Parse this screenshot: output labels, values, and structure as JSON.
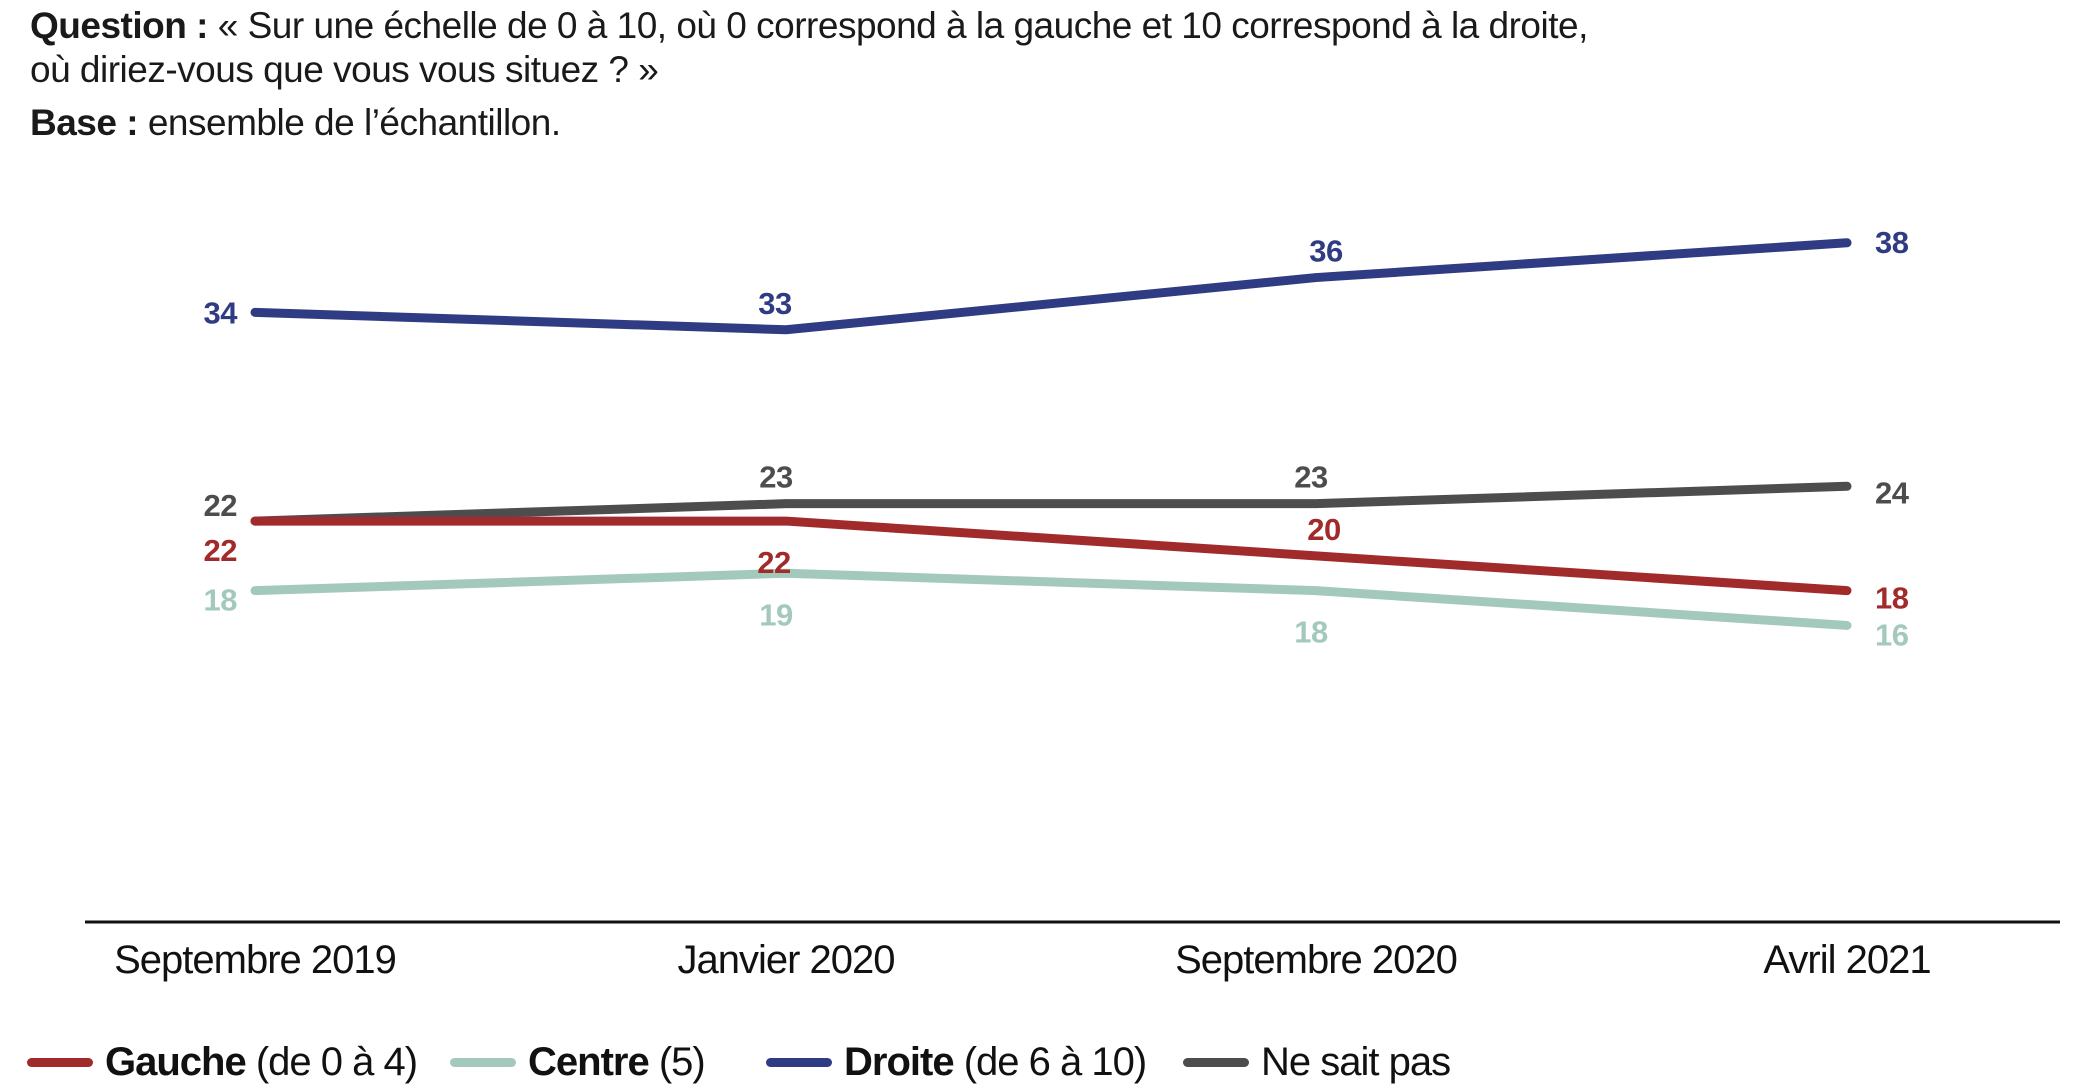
{
  "header": {
    "question_label": "Question :",
    "question_text": " « Sur une échelle de 0 à 10, où 0 correspond à la gauche et 10 correspond à la droite,",
    "question_line2": "où diriez-vous que vous vous situez ? »",
    "base_label": "Base :",
    "base_text": " ensemble de l’échantillon."
  },
  "chart_data": {
    "type": "line",
    "categories": [
      "Septembre 2019",
      "Janvier 2020",
      "Septembre 2020",
      "Avril 2021"
    ],
    "series": [
      {
        "name": "Gauche",
        "suffix": " (de 0 à 4)",
        "bold_name": true,
        "color": "#A12B2B",
        "values": [
          22,
          22,
          20,
          18
        ]
      },
      {
        "name": "Centre",
        "suffix": " (5)",
        "bold_name": true,
        "color": "#A3C9BC",
        "values": [
          18,
          19,
          18,
          16
        ]
      },
      {
        "name": "Droite",
        "suffix": " (de 6 à 10)",
        "bold_name": true,
        "color": "#2F3B82",
        "values": [
          34,
          33,
          36,
          38
        ]
      },
      {
        "name": "Ne sait pas",
        "suffix": "",
        "bold_name": false,
        "color": "#4D4D4D",
        "values": [
          22,
          23,
          23,
          24
        ]
      }
    ],
    "ylim": [
      12,
      40
    ],
    "grid": false,
    "data_labels": true,
    "legend_position": "bottom",
    "axis_line_color": "#111111"
  }
}
